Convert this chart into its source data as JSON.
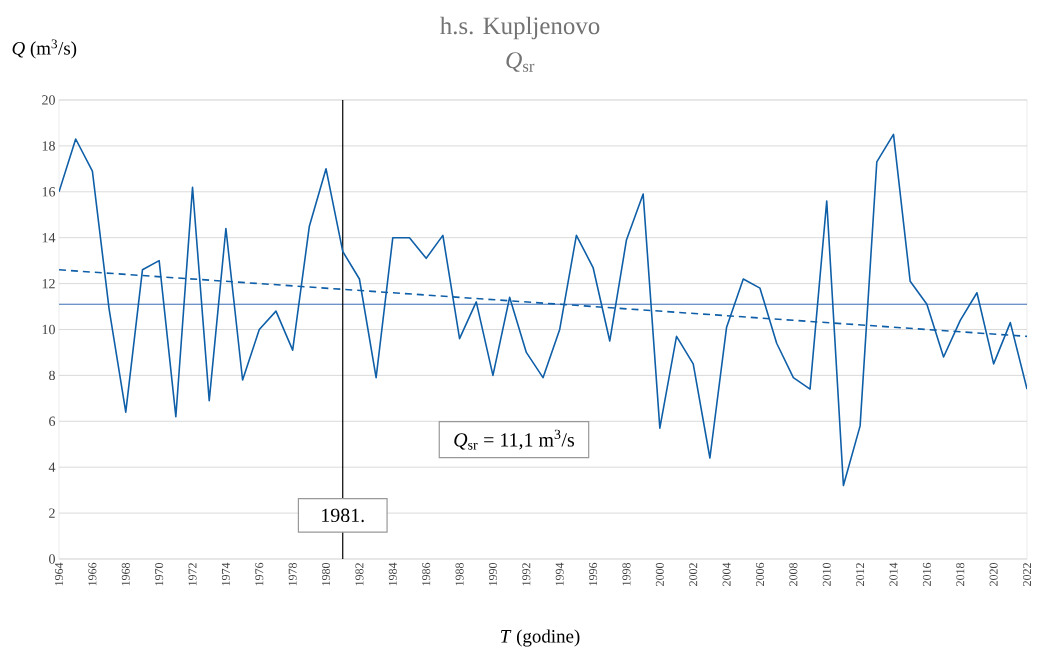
{
  "chart_data": {
    "type": "line",
    "title": "h.s. Kupljenovo",
    "subtitle": "*Q*$_{sr}$",
    "xlabel": "*T* (godine)",
    "ylabel": "*Q* (m$^{3}$/s)",
    "x": [
      1964,
      1965,
      1966,
      1967,
      1968,
      1969,
      1970,
      1971,
      1972,
      1973,
      1974,
      1975,
      1976,
      1977,
      1978,
      1979,
      1980,
      1981,
      1982,
      1983,
      1984,
      1985,
      1986,
      1987,
      1988,
      1989,
      1990,
      1991,
      1992,
      1993,
      1994,
      1995,
      1996,
      1997,
      1998,
      1999,
      2000,
      2001,
      2002,
      2003,
      2004,
      2005,
      2006,
      2007,
      2008,
      2009,
      2010,
      2011,
      2012,
      2013,
      2014,
      2015,
      2016,
      2017,
      2018,
      2019,
      2020,
      2021,
      2022
    ],
    "series": [
      {
        "color": "#0f5fa8",
        "values": [
          16.0,
          18.3,
          16.9,
          10.9,
          6.4,
          12.6,
          13.0,
          6.2,
          16.2,
          6.9,
          14.4,
          7.8,
          10.0,
          10.8,
          9.1,
          14.5,
          17.0,
          13.4,
          12.2,
          7.9,
          14.0,
          14.0,
          13.1,
          14.1,
          9.6,
          11.2,
          8.0,
          11.4,
          9.0,
          7.9,
          10.0,
          14.1,
          12.7,
          9.5,
          13.9,
          15.9,
          5.7,
          9.7,
          8.5,
          4.4,
          10.1,
          12.2,
          11.8,
          9.4,
          7.9,
          7.4,
          15.6,
          3.2,
          5.8,
          17.3,
          18.5,
          12.1,
          11.1,
          8.8,
          10.4,
          11.6,
          8.5,
          10.3,
          7.4
        ]
      },
      {
        "type": "line",
        "color": "#0f5fa8",
        "line_style": "dashed",
        "x": [
          1964,
          2022
        ],
        "values": [
          12.6,
          9.7
        ]
      }
    ],
    "ref_lines": [
      {
        "axis": "y",
        "value": 11.1,
        "color": "#3b6db3"
      },
      {
        "axis": "x",
        "value": 1981,
        "label": "1981.",
        "color": "#000000"
      }
    ],
    "xlim": [
      1964,
      2022
    ],
    "xticks": [
      1964,
      1966,
      1968,
      1970,
      1972,
      1974,
      1976,
      1978,
      1980,
      1982,
      1984,
      1986,
      1988,
      1990,
      1992,
      1994,
      1996,
      1998,
      2000,
      2002,
      2004,
      2006,
      2008,
      2010,
      2012,
      2014,
      2016,
      2018,
      2020,
      2022
    ],
    "ylim": [
      0,
      20
    ],
    "yticks": [
      0,
      2,
      4,
      6,
      8,
      10,
      12,
      14,
      16,
      18,
      20
    ],
    "annotations": [
      "*Q*$_{sr}$ = 11,1 m$^{3}$/s"
    ],
    "grid": "y",
    "marker": "none",
    "line_style": "solid"
  }
}
